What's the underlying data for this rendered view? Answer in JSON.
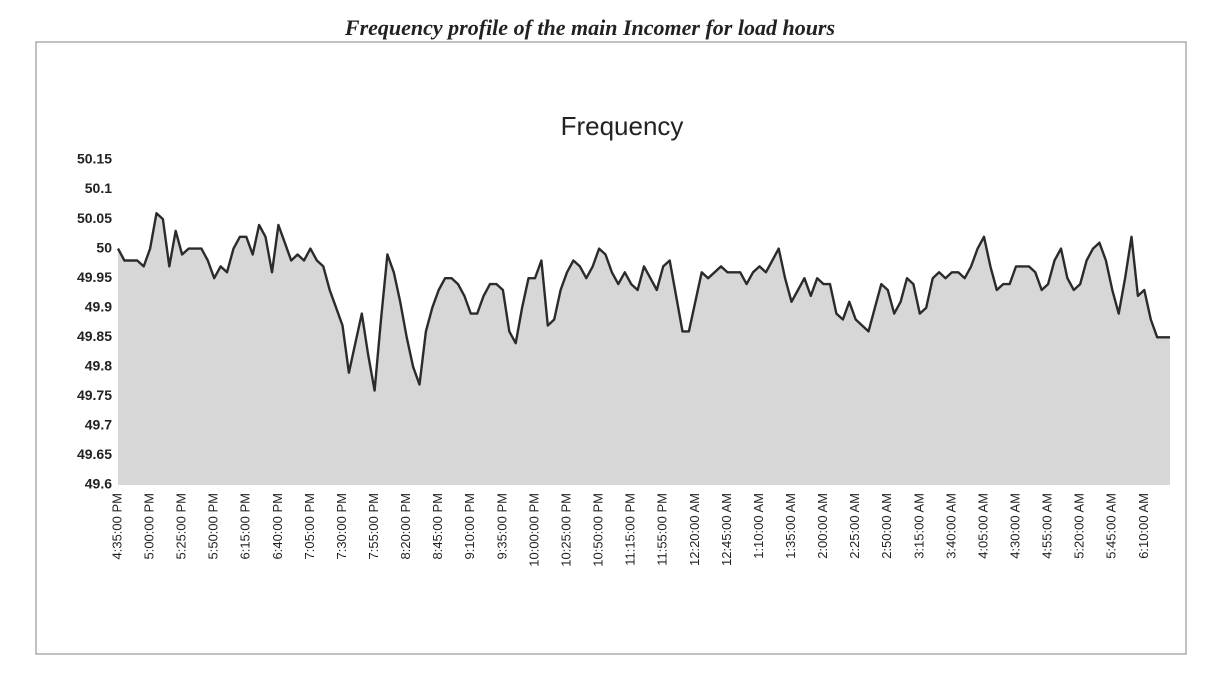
{
  "chart_data": {
    "type": "line",
    "caption": "Frequency profile of the main Incomer for load hours",
    "title": "Frequency",
    "categories": [
      "4:35:00 PM",
      null,
      null,
      null,
      null,
      "5:00:00 PM",
      null,
      null,
      null,
      null,
      "5:25:00 PM",
      null,
      null,
      null,
      null,
      "5:50:00 PM",
      null,
      null,
      null,
      null,
      "6:15:00 PM",
      null,
      null,
      null,
      null,
      "6:40:00 PM",
      null,
      null,
      null,
      null,
      "7:05:00 PM",
      null,
      null,
      null,
      null,
      "7:30:00 PM",
      null,
      null,
      null,
      null,
      "7:55:00 PM",
      null,
      null,
      null,
      null,
      "8:20:00 PM",
      null,
      null,
      null,
      null,
      "8:45:00 PM",
      null,
      null,
      null,
      null,
      "9:10:00 PM",
      null,
      null,
      null,
      null,
      "9:35:00 PM",
      null,
      null,
      null,
      null,
      "10:00:00 PM",
      null,
      null,
      null,
      null,
      "10:25:00 PM",
      null,
      null,
      null,
      null,
      "10:50:00 PM",
      null,
      null,
      null,
      null,
      "11:15:00 PM",
      null,
      null,
      null,
      null,
      "11:55:00 PM",
      null,
      null,
      null,
      null,
      "12:20:00 AM",
      null,
      null,
      null,
      null,
      "12:45:00 AM",
      null,
      null,
      null,
      null,
      "1:10:00 AM",
      null,
      null,
      null,
      null,
      "1:35:00 AM",
      null,
      null,
      null,
      null,
      "2:00:00 AM",
      null,
      null,
      null,
      null,
      "2:25:00 AM",
      null,
      null,
      null,
      null,
      "2:50:00 AM",
      null,
      null,
      null,
      null,
      "3:15:00 AM",
      null,
      null,
      null,
      null,
      "3:40:00 AM",
      null,
      null,
      null,
      null,
      "4:05:00 AM",
      null,
      null,
      null,
      null,
      "4:30:00 AM",
      null,
      null,
      null,
      null,
      "4:55:00 AM",
      null,
      null,
      null,
      null,
      "5:20:00 AM",
      null,
      null,
      null,
      null,
      "5:45:00 AM",
      null,
      null,
      null,
      null,
      "6:10:00 AM",
      null,
      null,
      null,
      null
    ],
    "values": [
      50.0,
      49.98,
      49.98,
      49.98,
      49.97,
      50.0,
      50.06,
      50.05,
      49.97,
      50.03,
      49.99,
      50.0,
      50.0,
      50.0,
      49.98,
      49.95,
      49.97,
      49.96,
      50.0,
      50.02,
      50.02,
      49.99,
      50.04,
      50.02,
      49.96,
      50.04,
      50.01,
      49.98,
      49.99,
      49.98,
      50.0,
      49.98,
      49.97,
      49.93,
      49.9,
      49.87,
      49.79,
      49.84,
      49.89,
      49.82,
      49.76,
      49.88,
      49.99,
      49.96,
      49.91,
      49.85,
      49.8,
      49.77,
      49.86,
      49.9,
      49.93,
      49.95,
      49.95,
      49.94,
      49.92,
      49.89,
      49.89,
      49.92,
      49.94,
      49.94,
      49.93,
      49.86,
      49.84,
      49.9,
      49.95,
      49.95,
      49.98,
      49.87,
      49.88,
      49.93,
      49.96,
      49.98,
      49.97,
      49.95,
      49.97,
      50.0,
      49.99,
      49.96,
      49.94,
      49.96,
      49.94,
      49.93,
      49.97,
      49.95,
      49.93,
      49.97,
      49.98,
      49.92,
      49.86,
      49.86,
      49.91,
      49.96,
      49.95,
      49.96,
      49.97,
      49.96,
      49.96,
      49.96,
      49.94,
      49.96,
      49.97,
      49.96,
      49.98,
      50.0,
      49.95,
      49.91,
      49.93,
      49.95,
      49.92,
      49.95,
      49.94,
      49.94,
      49.89,
      49.88,
      49.91,
      49.88,
      49.87,
      49.86,
      49.9,
      49.94,
      49.93,
      49.89,
      49.91,
      49.95,
      49.94,
      49.89,
      49.9,
      49.95,
      49.96,
      49.95,
      49.96,
      49.96,
      49.95,
      49.97,
      50.0,
      50.02,
      49.97,
      49.93,
      49.94,
      49.94,
      49.97,
      49.97,
      49.97,
      49.96,
      49.93,
      49.94,
      49.98,
      50.0,
      49.95,
      49.93,
      49.94,
      49.98,
      50.0,
      50.01,
      49.98,
      49.93,
      49.89,
      49.95,
      50.02,
      49.92,
      49.93,
      49.88,
      49.85,
      49.85,
      49.85
    ],
    "color": "#2b2b2b",
    "area_color": "#c9c9c9",
    "ylim": [
      49.6,
      50.15
    ],
    "yticks": [
      49.6,
      49.65,
      49.7,
      49.75,
      49.8,
      49.85,
      49.9,
      49.95,
      50,
      50.05,
      50.1,
      50.15
    ],
    "grid": false
  }
}
